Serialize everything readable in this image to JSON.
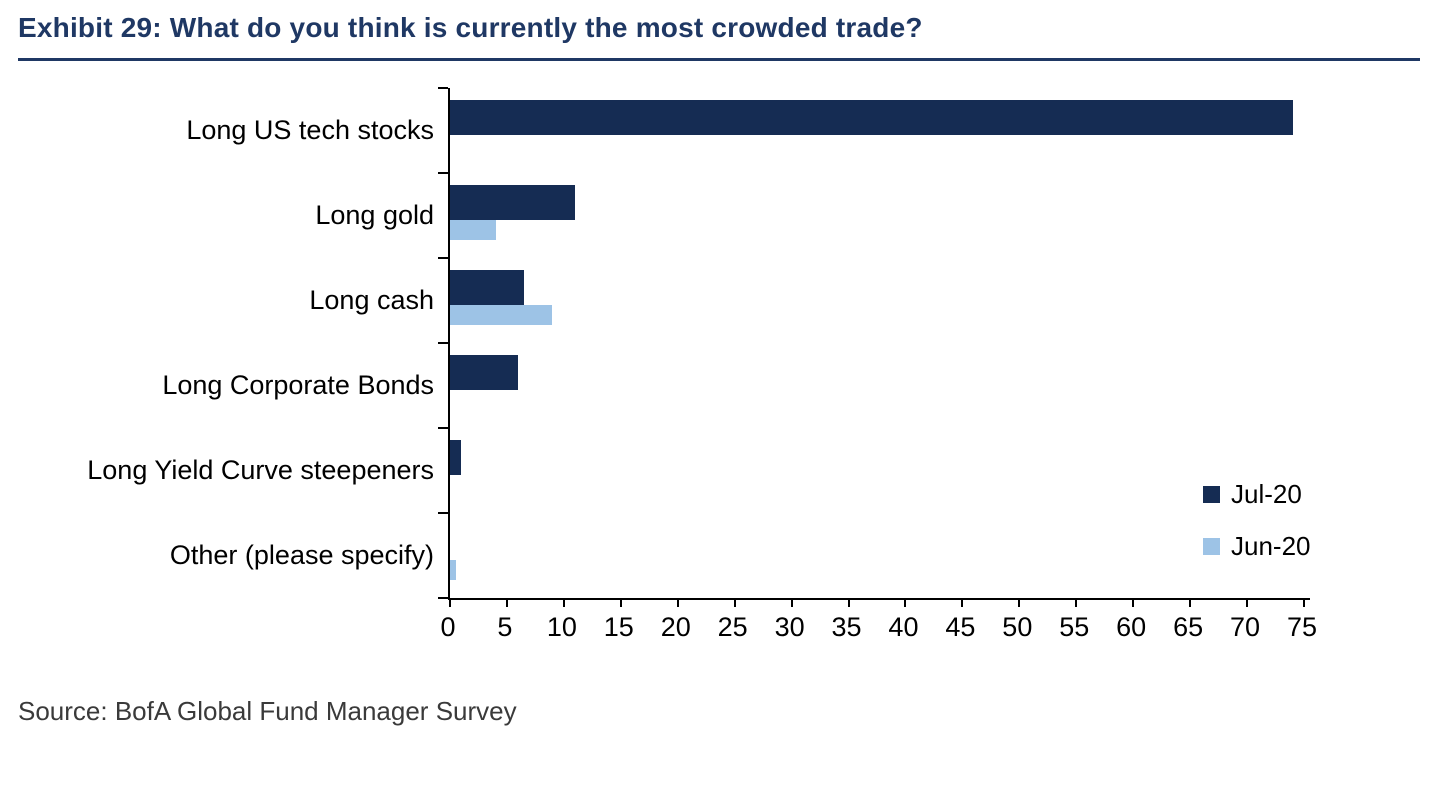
{
  "header": {
    "title": "Exhibit 29: What do you think is currently the most crowded trade?"
  },
  "chart_data": {
    "type": "bar",
    "orientation": "horizontal",
    "title": "Exhibit 29: What do you think is currently the most crowded trade?",
    "categories": [
      "Long US tech stocks",
      "Long gold",
      "Long cash",
      "Long Corporate Bonds",
      "Long Yield Curve steepeners",
      "Other (please specify)"
    ],
    "series": [
      {
        "name": "Jul-20",
        "color": "#152C53",
        "values": [
          74,
          11,
          6.5,
          6,
          1,
          0
        ]
      },
      {
        "name": "Jun-20",
        "color": "#9DC3E6",
        "values": [
          0,
          4,
          9,
          0,
          0,
          0.5
        ]
      }
    ],
    "xlabel": "",
    "ylabel": "",
    "xlim": [
      0,
      75
    ],
    "xticks": [
      0,
      5,
      10,
      15,
      20,
      25,
      30,
      35,
      40,
      45,
      50,
      55,
      60,
      65,
      70,
      75
    ],
    "grid": false,
    "legend_position": "inside-right"
  },
  "footer": {
    "source": "Source: BofA Global Fund Manager Survey"
  }
}
